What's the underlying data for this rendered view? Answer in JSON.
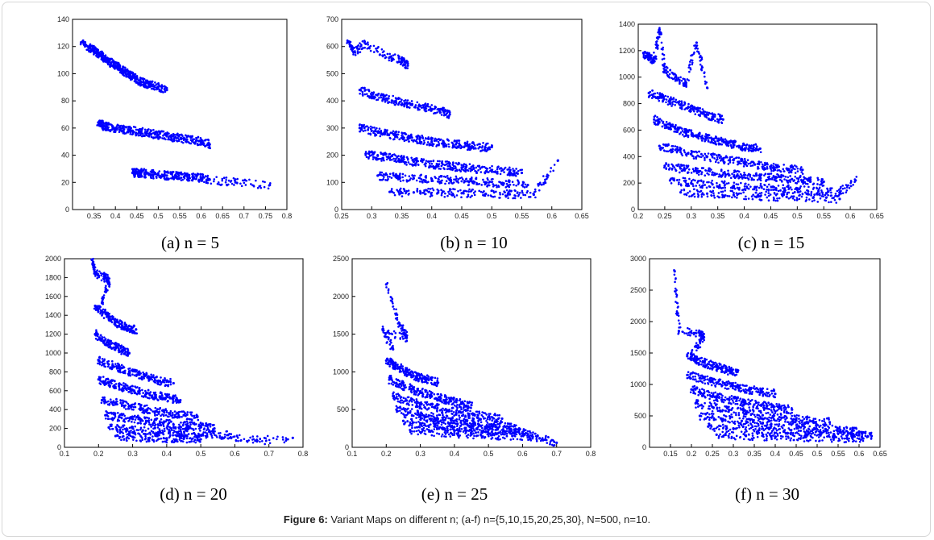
{
  "caption": {
    "label": "Figure 6:",
    "text": "Variant Maps on different n; (a-f) n={5,10,15,20,25,30}, N=500, n=10."
  },
  "chart_data": [
    {
      "type": "scatter",
      "panel_label": "(a) n = 5",
      "xlim": [
        0.3,
        0.8
      ],
      "ylim": [
        0,
        140
      ],
      "xticks": [
        "0.35",
        "0.4",
        "0.45",
        "0.5",
        "0.55",
        "0.6",
        "0.65",
        "0.7",
        "0.75",
        "0.8"
      ],
      "yticks": [
        "0",
        "20",
        "40",
        "60",
        "80",
        "100",
        "120",
        "140"
      ],
      "color": "#0000ff",
      "series": [
        {
          "x": [
            0.32,
            0.34,
            0.35,
            0.36,
            0.37,
            0.38,
            0.39,
            0.4,
            0.41,
            0.42,
            0.43,
            0.44,
            0.45,
            0.46,
            0.47,
            0.48,
            0.5,
            0.52
          ],
          "y": [
            123,
            119,
            117,
            115,
            113,
            110,
            108,
            106,
            104,
            102,
            100,
            98,
            96,
            94,
            93,
            92,
            90,
            88
          ]
        },
        {
          "x": [
            0.36,
            0.37,
            0.38,
            0.4,
            0.42,
            0.44,
            0.46,
            0.48,
            0.5,
            0.52,
            0.54,
            0.56,
            0.58,
            0.6,
            0.62
          ],
          "y": [
            64,
            62,
            61,
            60,
            59,
            58,
            57,
            56,
            55,
            54,
            53,
            52,
            51,
            50,
            48
          ]
        },
        {
          "x": [
            0.44,
            0.45,
            0.46,
            0.48,
            0.5,
            0.52,
            0.54,
            0.56,
            0.58,
            0.6,
            0.62,
            0.68,
            0.76
          ],
          "y": [
            27,
            27,
            27,
            26,
            26,
            25,
            25,
            24,
            24,
            23,
            22,
            20,
            18
          ]
        }
      ]
    },
    {
      "type": "scatter",
      "panel_label": "(b) n = 10",
      "xlim": [
        0.25,
        0.65
      ],
      "ylim": [
        0,
        700
      ],
      "xticks": [
        "0.25",
        "0.3",
        "0.35",
        "0.4",
        "0.45",
        "0.5",
        "0.55",
        "0.6",
        "0.65"
      ],
      "yticks": [
        "0",
        "100",
        "200",
        "300",
        "400",
        "500",
        "600",
        "700"
      ],
      "color": "#0000ff",
      "series": [
        {
          "x": [
            0.26,
            0.27,
            0.29,
            0.33,
            0.35,
            0.36
          ],
          "y": [
            620,
            580,
            610,
            560,
            550,
            530
          ]
        },
        {
          "x": [
            0.28,
            0.3,
            0.32,
            0.34,
            0.36,
            0.38,
            0.4,
            0.42,
            0.43
          ],
          "y": [
            440,
            420,
            410,
            400,
            390,
            380,
            370,
            360,
            350
          ]
        },
        {
          "x": [
            0.28,
            0.3,
            0.32,
            0.34,
            0.36,
            0.38,
            0.4,
            0.42,
            0.44,
            0.46,
            0.48,
            0.5
          ],
          "y": [
            300,
            290,
            280,
            272,
            265,
            258,
            250,
            245,
            240,
            235,
            230,
            230
          ]
        },
        {
          "x": [
            0.29,
            0.31,
            0.33,
            0.35,
            0.37,
            0.39,
            0.41,
            0.43,
            0.45,
            0.47,
            0.5,
            0.53,
            0.55
          ],
          "y": [
            205,
            198,
            190,
            183,
            176,
            170,
            165,
            160,
            155,
            150,
            145,
            140,
            135
          ]
        },
        {
          "x": [
            0.31,
            0.34,
            0.37,
            0.4,
            0.43,
            0.46,
            0.49,
            0.52,
            0.56
          ],
          "y": [
            125,
            120,
            115,
            112,
            108,
            104,
            100,
            96,
            90
          ]
        },
        {
          "x": [
            0.33,
            0.37,
            0.41,
            0.45,
            0.49,
            0.53,
            0.57,
            0.61
          ],
          "y": [
            65,
            63,
            62,
            60,
            58,
            56,
            55,
            180
          ]
        }
      ]
    },
    {
      "type": "scatter",
      "panel_label": "(c) n = 15",
      "xlim": [
        0.2,
        0.65
      ],
      "ylim": [
        0,
        1400
      ],
      "xticks": [
        "0.2",
        "0.25",
        "0.3",
        "0.35",
        "0.4",
        "0.45",
        "0.5",
        "0.55",
        "0.6",
        "0.65"
      ],
      "yticks": [
        "0",
        "200",
        "400",
        "600",
        "800",
        "1000",
        "1200",
        "1400"
      ],
      "color": "#0000ff",
      "series": [
        {
          "x": [
            0.21,
            0.22,
            0.23,
            0.24,
            0.25,
            0.27,
            0.29,
            0.31,
            0.33
          ],
          "y": [
            1180,
            1150,
            1120,
            1360,
            1050,
            1000,
            950,
            1260,
            920
          ]
        },
        {
          "x": [
            0.22,
            0.24,
            0.26,
            0.28,
            0.3,
            0.32,
            0.34,
            0.36
          ],
          "y": [
            880,
            850,
            820,
            790,
            760,
            730,
            700,
            680
          ]
        },
        {
          "x": [
            0.23,
            0.25,
            0.27,
            0.29,
            0.31,
            0.33,
            0.35,
            0.37,
            0.39,
            0.41,
            0.43
          ],
          "y": [
            680,
            640,
            610,
            580,
            560,
            540,
            520,
            500,
            480,
            470,
            460
          ]
        },
        {
          "x": [
            0.24,
            0.27,
            0.3,
            0.33,
            0.36,
            0.39,
            0.42,
            0.45,
            0.48,
            0.51
          ],
          "y": [
            480,
            450,
            420,
            400,
            380,
            360,
            340,
            320,
            310,
            300
          ]
        },
        {
          "x": [
            0.25,
            0.28,
            0.31,
            0.34,
            0.37,
            0.4,
            0.43,
            0.46,
            0.49,
            0.52,
            0.55
          ],
          "y": [
            330,
            310,
            290,
            280,
            270,
            260,
            250,
            240,
            230,
            220,
            210
          ]
        },
        {
          "x": [
            0.26,
            0.3,
            0.34,
            0.38,
            0.42,
            0.46,
            0.5,
            0.54,
            0.58,
            0.61
          ],
          "y": [
            220,
            200,
            190,
            180,
            170,
            160,
            150,
            140,
            130,
            220
          ]
        },
        {
          "x": [
            0.28,
            0.33,
            0.38,
            0.43,
            0.48,
            0.53,
            0.58
          ],
          "y": [
            130,
            120,
            110,
            100,
            95,
            90,
            80
          ]
        }
      ]
    },
    {
      "type": "scatter",
      "panel_label": "(d) n = 20",
      "xlim": [
        0.1,
        0.8
      ],
      "ylim": [
        0,
        2000
      ],
      "xticks": [
        "0.1",
        "0.2",
        "0.3",
        "0.4",
        "0.5",
        "0.6",
        "0.7",
        "0.8"
      ],
      "yticks": [
        "0",
        "200",
        "400",
        "600",
        "800",
        "1000",
        "1200",
        "1400",
        "1600",
        "1800",
        "2000"
      ],
      "color": "#0000ff",
      "series": [
        {
          "x": [
            0.18,
            0.19,
            0.22,
            0.23,
            0.21
          ],
          "y": [
            1990,
            1850,
            1800,
            1760,
            1530
          ]
        },
        {
          "x": [
            0.19,
            0.21,
            0.23,
            0.25,
            0.27,
            0.29,
            0.31
          ],
          "y": [
            1500,
            1440,
            1380,
            1330,
            1290,
            1250,
            1250
          ]
        },
        {
          "x": [
            0.19,
            0.21,
            0.23,
            0.25,
            0.27,
            0.29
          ],
          "y": [
            1200,
            1150,
            1100,
            1060,
            1030,
            1000
          ]
        },
        {
          "x": [
            0.2,
            0.23,
            0.26,
            0.29,
            0.32,
            0.35,
            0.38,
            0.42
          ],
          "y": [
            920,
            880,
            840,
            800,
            770,
            740,
            700,
            680
          ]
        },
        {
          "x": [
            0.2,
            0.23,
            0.26,
            0.29,
            0.32,
            0.35,
            0.38,
            0.41,
            0.44
          ],
          "y": [
            720,
            680,
            650,
            620,
            590,
            560,
            540,
            520,
            500
          ]
        },
        {
          "x": [
            0.21,
            0.25,
            0.29,
            0.33,
            0.37,
            0.41,
            0.45,
            0.49
          ],
          "y": [
            500,
            470,
            440,
            410,
            380,
            360,
            340,
            320
          ]
        },
        {
          "x": [
            0.22,
            0.26,
            0.3,
            0.34,
            0.38,
            0.42,
            0.46,
            0.5,
            0.54
          ],
          "y": [
            340,
            320,
            300,
            280,
            260,
            240,
            230,
            220,
            200
          ]
        },
        {
          "x": [
            0.23,
            0.28,
            0.33,
            0.38,
            0.43,
            0.48,
            0.53,
            0.58,
            0.66,
            0.77
          ],
          "y": [
            210,
            190,
            180,
            170,
            160,
            150,
            140,
            130,
            70,
            100
          ]
        },
        {
          "x": [
            0.25,
            0.3,
            0.35,
            0.4,
            0.45,
            0.5
          ],
          "y": [
            120,
            110,
            100,
            95,
            90,
            85
          ]
        }
      ]
    },
    {
      "type": "scatter",
      "panel_label": "(e)    n = 25",
      "xlim": [
        0.1,
        0.8
      ],
      "ylim": [
        0,
        2500
      ],
      "xticks": [
        "0.1",
        "0.2",
        "0.3",
        "0.4",
        "0.5",
        "0.6",
        "0.7",
        "0.8"
      ],
      "yticks": [
        "0",
        "500",
        "1000",
        "1500",
        "2000",
        "2500"
      ],
      "color": "#0000ff",
      "series": [
        {
          "x": [
            0.2,
            0.24,
            0.26,
            0.19,
            0.22
          ],
          "y": [
            2160,
            1620,
            1450,
            1550,
            1300
          ]
        },
        {
          "x": [
            0.2,
            0.22,
            0.24,
            0.26,
            0.28,
            0.3,
            0.32,
            0.35
          ],
          "y": [
            1150,
            1100,
            1050,
            1000,
            950,
            920,
            900,
            860
          ]
        },
        {
          "x": [
            0.21,
            0.24,
            0.27,
            0.3,
            0.33,
            0.36,
            0.39,
            0.42,
            0.45
          ],
          "y": [
            900,
            840,
            780,
            730,
            690,
            650,
            610,
            580,
            560
          ]
        },
        {
          "x": [
            0.22,
            0.26,
            0.3,
            0.34,
            0.38,
            0.42,
            0.46,
            0.5,
            0.54
          ],
          "y": [
            680,
            620,
            570,
            530,
            490,
            460,
            430,
            400,
            380
          ]
        },
        {
          "x": [
            0.23,
            0.27,
            0.31,
            0.35,
            0.39,
            0.43,
            0.47,
            0.51,
            0.55,
            0.59
          ],
          "y": [
            500,
            460,
            420,
            390,
            360,
            330,
            310,
            290,
            270,
            250
          ]
        },
        {
          "x": [
            0.25,
            0.3,
            0.35,
            0.4,
            0.45,
            0.5,
            0.55,
            0.6,
            0.65,
            0.7
          ],
          "y": [
            350,
            320,
            290,
            270,
            250,
            230,
            210,
            200,
            120,
            60
          ]
        },
        {
          "x": [
            0.27,
            0.33,
            0.39,
            0.45,
            0.51,
            0.57,
            0.63
          ],
          "y": [
            230,
            210,
            190,
            170,
            160,
            150,
            140
          ]
        }
      ]
    },
    {
      "type": "scatter",
      "panel_label": "(f) n = 30",
      "xlim": [
        0.1,
        0.65
      ],
      "ylim": [
        0,
        3000
      ],
      "xticks": [
        "0.15",
        "0.2",
        "0.25",
        "0.3",
        "0.35",
        "0.4",
        "0.45",
        "0.5",
        "0.55",
        "0.6",
        "0.65"
      ],
      "yticks": [
        "0",
        "500",
        "1000",
        "1500",
        "2000",
        "2500",
        "3000"
      ],
      "color": "#0000ff",
      "series": [
        {
          "x": [
            0.16,
            0.17,
            0.22,
            0.23,
            0.2
          ],
          "y": [
            2800,
            1850,
            1800,
            1750,
            1500
          ]
        },
        {
          "x": [
            0.19,
            0.21,
            0.23,
            0.25,
            0.27,
            0.29,
            0.31
          ],
          "y": [
            1450,
            1400,
            1350,
            1300,
            1260,
            1220,
            1200
          ]
        },
        {
          "x": [
            0.19,
            0.22,
            0.25,
            0.28,
            0.31,
            0.34,
            0.37,
            0.4
          ],
          "y": [
            1150,
            1100,
            1050,
            1000,
            960,
            920,
            880,
            850
          ]
        },
        {
          "x": [
            0.2,
            0.23,
            0.26,
            0.29,
            0.32,
            0.35,
            0.38,
            0.41,
            0.44
          ],
          "y": [
            920,
            860,
            800,
            760,
            720,
            680,
            650,
            620,
            600
          ]
        },
        {
          "x": [
            0.21,
            0.25,
            0.29,
            0.33,
            0.37,
            0.41,
            0.45,
            0.49,
            0.53
          ],
          "y": [
            700,
            640,
            590,
            550,
            510,
            480,
            450,
            420,
            400
          ]
        },
        {
          "x": [
            0.22,
            0.27,
            0.32,
            0.37,
            0.42,
            0.47,
            0.52,
            0.57,
            0.6
          ],
          "y": [
            500,
            460,
            420,
            380,
            350,
            320,
            290,
            260,
            250
          ]
        },
        {
          "x": [
            0.24,
            0.3,
            0.36,
            0.42,
            0.48,
            0.54,
            0.6,
            0.63
          ],
          "y": [
            330,
            300,
            270,
            250,
            230,
            210,
            190,
            180
          ]
        },
        {
          "x": [
            0.26,
            0.33,
            0.4,
            0.47,
            0.54,
            0.61
          ],
          "y": [
            200,
            180,
            170,
            160,
            150,
            140
          ]
        }
      ]
    }
  ]
}
